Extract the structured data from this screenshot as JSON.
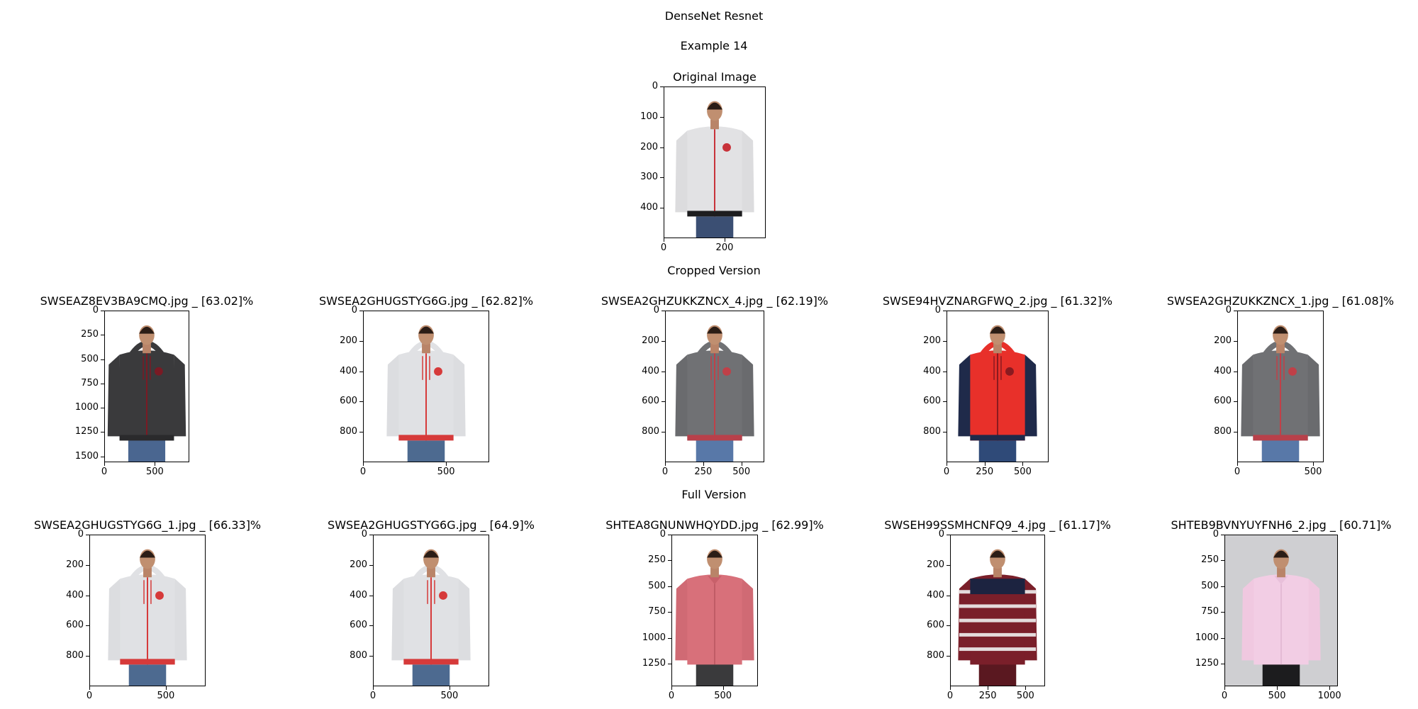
{
  "titles": {
    "main": "DenseNet Resnet",
    "example": "Example 14",
    "cropped_section": "Cropped Version",
    "full_section": "Full Version"
  },
  "chart_data": [
    {
      "type": "image",
      "title": "Original Image",
      "xlim": [
        0,
        335
      ],
      "ylim": [
        500,
        0
      ],
      "xticks": [
        0,
        200
      ],
      "yticks": [
        0,
        100,
        200,
        300,
        400
      ],
      "garment": "jacket",
      "colors": {
        "body": "#e2e2e4",
        "accent": "#c8323a",
        "trim": "#1d1d1f",
        "sleeve": "#dcdcde",
        "pants": "#3b4f73"
      }
    },
    {
      "type": "image",
      "title": "SWSEAZ8EV3BA9CMQ.jpg _ [63.02]%",
      "xlim": [
        0,
        840
      ],
      "ylim": [
        1560,
        0
      ],
      "xticks": [
        0,
        500
      ],
      "yticks": [
        0,
        250,
        500,
        750,
        1000,
        1250,
        1500
      ],
      "garment": "hoodie",
      "colors": {
        "body": "#3a3a3c",
        "accent": "#7a1a24",
        "trim": "#2a2a2c",
        "sleeve": "#3a3a3c",
        "pants": "#4a6690"
      }
    },
    {
      "type": "image",
      "title": "SWSEA2GHUGSTYG6G.jpg _ [62.82]%",
      "xlim": [
        0,
        760
      ],
      "ylim": [
        1000,
        0
      ],
      "xticks": [
        0,
        500
      ],
      "yticks": [
        0,
        200,
        400,
        600,
        800
      ],
      "garment": "hoodie",
      "colors": {
        "body": "#e0e1e4",
        "accent": "#d63a3a",
        "trim": "#d63a3a",
        "sleeve": "#dcdde0",
        "pants": "#4d6a90"
      }
    },
    {
      "type": "image",
      "title": "SWSEA2GHZUKKZNCX_4.jpg _ [62.19]%",
      "xlim": [
        0,
        650
      ],
      "ylim": [
        1000,
        0
      ],
      "xticks": [
        0,
        250,
        500
      ],
      "yticks": [
        0,
        200,
        400,
        600,
        800
      ],
      "garment": "hoodie",
      "colors": {
        "body": "#707174",
        "accent": "#c04048",
        "trim": "#b8404a",
        "sleeve": "#6a6b6e",
        "pants": "#5878a8"
      }
    },
    {
      "type": "image",
      "title": "SWSE94HVZNARGFWQ_2.jpg _ [61.32]%",
      "xlim": [
        0,
        670
      ],
      "ylim": [
        1000,
        0
      ],
      "xticks": [
        0,
        250,
        500
      ],
      "yticks": [
        0,
        200,
        400,
        600,
        800
      ],
      "garment": "hoodie",
      "colors": {
        "body": "#e8302a",
        "accent": "#8a1a20",
        "trim": "#1f2a4a",
        "sleeve": "#1f2a4a",
        "pants": "#2f4a78"
      }
    },
    {
      "type": "image",
      "title": "SWSEA2GHZUKKZNCX_1.jpg _ [61.08]%",
      "xlim": [
        0,
        570
      ],
      "ylim": [
        1000,
        0
      ],
      "xticks": [
        0,
        500
      ],
      "yticks": [
        0,
        200,
        400,
        600,
        800
      ],
      "garment": "hoodie",
      "colors": {
        "body": "#707174",
        "accent": "#c04048",
        "trim": "#b8404a",
        "sleeve": "#6a6b6e",
        "pants": "#5878a8"
      }
    },
    {
      "type": "image",
      "title": "SWSEA2GHUGSTYG6G_1.jpg _ [66.33]%",
      "xlim": [
        0,
        760
      ],
      "ylim": [
        1000,
        0
      ],
      "xticks": [
        0,
        500
      ],
      "yticks": [
        0,
        200,
        400,
        600,
        800
      ],
      "garment": "hoodie",
      "colors": {
        "body": "#e0e1e4",
        "accent": "#d63a3a",
        "trim": "#d63a3a",
        "sleeve": "#dcdde0",
        "pants": "#4d6a90"
      }
    },
    {
      "type": "image",
      "title": "SWSEA2GHUGSTYG6G.jpg _ [64.9]%",
      "xlim": [
        0,
        760
      ],
      "ylim": [
        1000,
        0
      ],
      "xticks": [
        0,
        500
      ],
      "yticks": [
        0,
        200,
        400,
        600,
        800
      ],
      "garment": "hoodie",
      "colors": {
        "body": "#e0e1e4",
        "accent": "#d63a3a",
        "trim": "#d63a3a",
        "sleeve": "#dcdde0",
        "pants": "#4d6a90"
      }
    },
    {
      "type": "image",
      "title": "SHTEA8GNUNWHQYDD.jpg _ [62.99]%",
      "xlim": [
        0,
        840
      ],
      "ylim": [
        1470,
        0
      ],
      "xticks": [
        0,
        500
      ],
      "yticks": [
        0,
        250,
        500,
        750,
        1000,
        1250
      ],
      "garment": "shirt",
      "colors": {
        "body": "#d8707a",
        "accent": "#b85560",
        "trim": "#c8606a",
        "sleeve": "#d06a74",
        "pants": "#3a3a3c"
      }
    },
    {
      "type": "image",
      "title": "SWSEH99SSMHCNFQ9_4.jpg _ [61.17]%",
      "xlim": [
        0,
        630
      ],
      "ylim": [
        1000,
        0
      ],
      "xticks": [
        0,
        250,
        500
      ],
      "yticks": [
        0,
        200,
        400,
        600,
        800
      ],
      "garment": "sweater",
      "colors": {
        "body": "#7a1f2a",
        "accent": "#1c2340",
        "trim": "#f0f0f0",
        "sleeve": "#7a1f2a",
        "pants": "#5a1820"
      }
    },
    {
      "type": "image",
      "title": "SHTEB9BVNYUYFNH6_2.jpg _ [60.71]%",
      "xlim": [
        0,
        1080
      ],
      "ylim": [
        1470,
        0
      ],
      "xticks": [
        0,
        500,
        1000
      ],
      "yticks": [
        0,
        250,
        500,
        750,
        1000,
        1250
      ],
      "garment": "shirt",
      "colors": {
        "body": "#f2cde4",
        "accent": "#e0b4d0",
        "trim": "#e8c0da",
        "sleeve": "#f0c8e0",
        "pants": "#1c1c1e",
        "bg": "#cfcfd2"
      }
    }
  ]
}
